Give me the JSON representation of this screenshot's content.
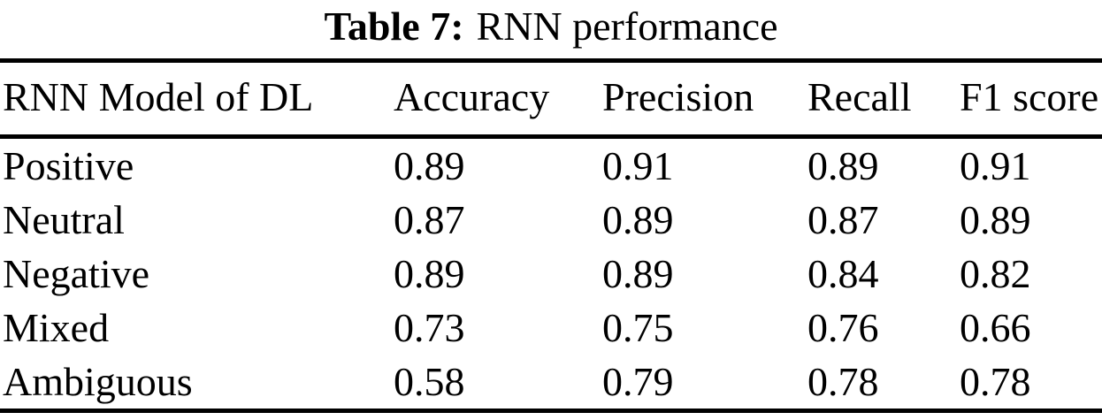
{
  "caption": {
    "label": "Table 7:",
    "title": "RNN performance"
  },
  "table": {
    "headers": [
      "RNN Model of DL",
      "Accuracy",
      "Precision",
      "Recall",
      "F1 score"
    ],
    "rows": [
      {
        "model": "Positive",
        "accuracy": "0.89",
        "precision": "0.91",
        "recall": "0.89",
        "f1": "0.91"
      },
      {
        "model": "Neutral",
        "accuracy": "0.87",
        "precision": "0.89",
        "recall": "0.87",
        "f1": "0.89"
      },
      {
        "model": "Negative",
        "accuracy": "0.89",
        "precision": "0.89",
        "recall": "0.84",
        "f1": "0.82"
      },
      {
        "model": "Mixed",
        "accuracy": "0.73",
        "precision": "0.75",
        "recall": "0.76",
        "f1": "0.66"
      },
      {
        "model": "Ambiguous",
        "accuracy": "0.58",
        "precision": "0.79",
        "recall": "0.78",
        "f1": "0.78"
      }
    ]
  },
  "colors": {
    "text": "#000000",
    "background": "#ffffff",
    "rule": "#000000"
  }
}
